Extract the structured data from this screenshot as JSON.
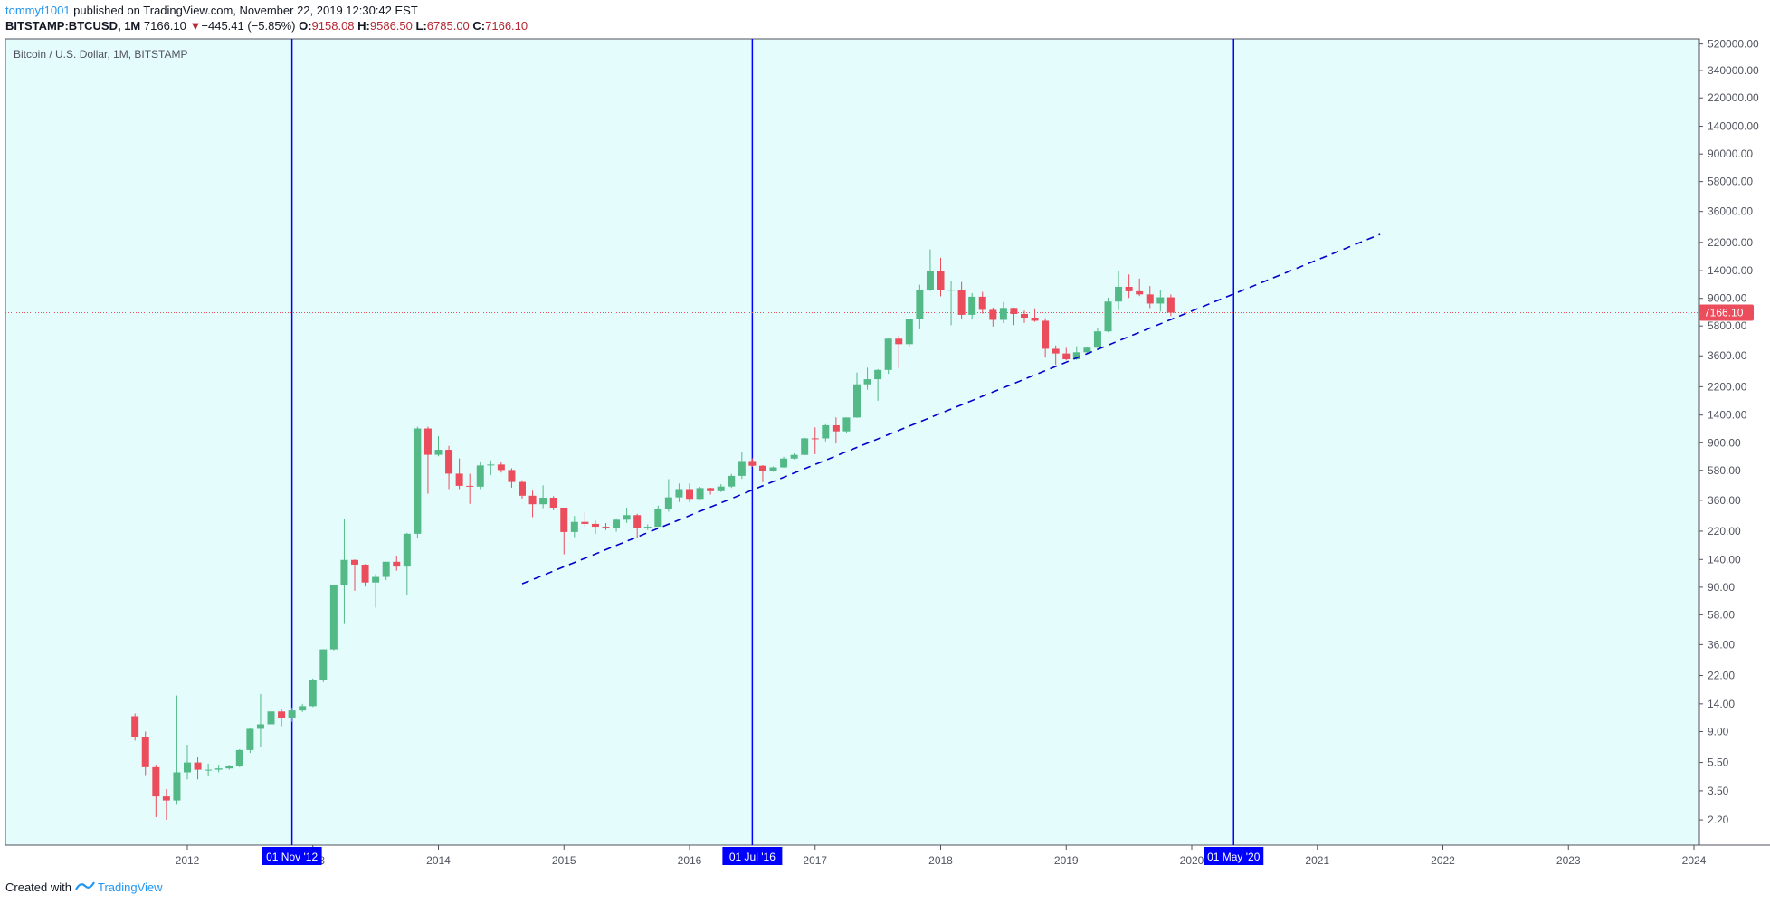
{
  "header": {
    "user": "tommyf1001",
    "published": "published on TradingView.com, November 22, 2019 12:30:42 EST",
    "symbol": "BITSTAMP:BTCUSD, 1M",
    "last": "7166.10",
    "change_arrow": "▼",
    "change": "−445.41 (−5.85%)",
    "open_label": "O:",
    "open": "9158.08",
    "high_label": "H:",
    "high": "9586.50",
    "low_label": "L:",
    "low": "6785.00",
    "close_label": "C:",
    "close": "7166.10"
  },
  "chart_data": {
    "type": "candlestick",
    "title": "Bitcoin / U.S. Dollar, 1M, BITSTAMP",
    "y_scale": "log",
    "ylim": [
      1.8,
      540000
    ],
    "y_ticks": [
      "2.20",
      "3.50",
      "5.50",
      "9.00",
      "14.00",
      "22.00",
      "36.00",
      "58.00",
      "90.00",
      "140.00",
      "220.00",
      "360.00",
      "580.00",
      "900.00",
      "1400.00",
      "2200.00",
      "3600.00",
      "5800.00",
      "9000.00",
      "14000.00",
      "22000.00",
      "36000.00",
      "58000.00",
      "90000.00",
      "140000.00",
      "220000.00",
      "340000.00",
      "520000.00"
    ],
    "x_ticks": [
      "2012",
      "2013",
      "2014",
      "2015",
      "2016",
      "2017",
      "2018",
      "2019",
      "2020",
      "2021",
      "2022",
      "2023",
      "2024"
    ],
    "x_range": [
      "2011-03",
      "2024-06"
    ],
    "colors": {
      "up": "#53b987",
      "down": "#eb4d5c",
      "background": "#e5fcfd",
      "vline": "#0000ff",
      "trend": "#0000cc",
      "price_line": "#eb4d5c"
    },
    "current_price": "7166.10",
    "vertical_lines": [
      {
        "date": "2012-11",
        "label": "01 Nov '12"
      },
      {
        "date": "2016-07",
        "label": "01 Jul '16"
      },
      {
        "date": "2020-05",
        "label": "01 May '20"
      }
    ],
    "trendline": {
      "start": [
        "2014-09",
        95
      ],
      "end": [
        "2021-07",
        25000
      ],
      "style": "dashed"
    },
    "candles": [
      [
        "2011-08",
        11.5,
        12.0,
        7.8,
        8.2
      ],
      [
        "2011-09",
        8.2,
        9.0,
        4.5,
        5.1
      ],
      [
        "2011-10",
        5.1,
        5.3,
        2.3,
        3.2
      ],
      [
        "2011-11",
        3.2,
        3.6,
        2.2,
        3.0
      ],
      [
        "2011-12",
        3.0,
        16.0,
        2.8,
        4.7
      ],
      [
        "2012-01",
        4.7,
        7.3,
        4.2,
        5.5
      ],
      [
        "2012-02",
        5.5,
        6.0,
        4.2,
        4.9
      ],
      [
        "2012-03",
        4.9,
        5.4,
        4.4,
        4.9
      ],
      [
        "2012-04",
        4.9,
        5.3,
        4.7,
        5.0
      ],
      [
        "2012-05",
        5.0,
        5.3,
        4.9,
        5.2
      ],
      [
        "2012-06",
        5.2,
        6.8,
        5.1,
        6.7
      ],
      [
        "2012-07",
        6.7,
        9.5,
        6.4,
        9.4
      ],
      [
        "2012-08",
        9.4,
        16.4,
        7.0,
        10.1
      ],
      [
        "2012-09",
        10.1,
        12.6,
        9.6,
        12.4
      ],
      [
        "2012-10",
        12.4,
        12.9,
        9.8,
        11.2
      ],
      [
        "2012-11",
        11.2,
        13.2,
        10.5,
        12.6
      ],
      [
        "2012-12",
        12.6,
        14.0,
        12.3,
        13.5
      ],
      [
        "2013-01",
        13.5,
        21.0,
        13.3,
        20.4
      ],
      [
        "2013-02",
        20.4,
        33.5,
        19.8,
        33.4
      ],
      [
        "2013-03",
        33.4,
        94.0,
        32.9,
        93.0
      ],
      [
        "2013-04",
        93.0,
        266.0,
        50.0,
        139.0
      ],
      [
        "2013-05",
        139.0,
        140.0,
        85.0,
        129.0
      ],
      [
        "2013-06",
        129.0,
        130.0,
        91.0,
        97.0
      ],
      [
        "2013-07",
        97.0,
        111.0,
        65.0,
        106.0
      ],
      [
        "2013-08",
        106.0,
        135.0,
        101.0,
        135.0
      ],
      [
        "2013-09",
        135.0,
        149.0,
        117.0,
        125.0
      ],
      [
        "2013-10",
        125.0,
        214.0,
        80.0,
        211.0
      ],
      [
        "2013-11",
        211.0,
        1163.0,
        197.0,
        1130.0
      ],
      [
        "2013-12",
        1130.0,
        1163.0,
        400.0,
        743.0
      ],
      [
        "2014-01",
        743.0,
        1000.0,
        725.0,
        805.0
      ],
      [
        "2014-02",
        805.0,
        857.0,
        430.0,
        550.0
      ],
      [
        "2014-03",
        550.0,
        700.0,
        430.0,
        453.0
      ],
      [
        "2014-04",
        453.0,
        549.0,
        340.0,
        447.0
      ],
      [
        "2014-05",
        447.0,
        660.0,
        430.0,
        627.0
      ],
      [
        "2014-06",
        627.0,
        680.0,
        537.0,
        636.0
      ],
      [
        "2014-07",
        636.0,
        660.0,
        560.0,
        583.0
      ],
      [
        "2014-08",
        583.0,
        600.0,
        440.0,
        482.0
      ],
      [
        "2014-09",
        482.0,
        495.0,
        370.0,
        387.0
      ],
      [
        "2014-10",
        387.0,
        420.0,
        275.0,
        338.0
      ],
      [
        "2014-11",
        338.0,
        457.0,
        317.0,
        375.0
      ],
      [
        "2014-12",
        375.0,
        385.0,
        307.0,
        320.0
      ],
      [
        "2015-01",
        320.0,
        320.0,
        152.0,
        217.0
      ],
      [
        "2015-02",
        217.0,
        280.0,
        200.0,
        255.0
      ],
      [
        "2015-03",
        255.0,
        300.0,
        235.0,
        247.0
      ],
      [
        "2015-04",
        247.0,
        260.0,
        210.0,
        236.0
      ],
      [
        "2015-05",
        236.0,
        250.0,
        224.0,
        230.0
      ],
      [
        "2015-06",
        230.0,
        270.0,
        218.0,
        264.0
      ],
      [
        "2015-07",
        264.0,
        320.0,
        251.0,
        284.0
      ],
      [
        "2015-08",
        284.0,
        290.0,
        198.0,
        230.0
      ],
      [
        "2015-09",
        230.0,
        245.0,
        224.0,
        236.0
      ],
      [
        "2015-10",
        236.0,
        330.0,
        235.0,
        314.0
      ],
      [
        "2015-11",
        314.0,
        504.0,
        300.0,
        377.0
      ],
      [
        "2015-12",
        377.0,
        470.0,
        350.0,
        430.0
      ],
      [
        "2016-01",
        430.0,
        470.0,
        350.0,
        368.0
      ],
      [
        "2016-02",
        368.0,
        445.0,
        366.0,
        437.0
      ],
      [
        "2016-03",
        437.0,
        440.0,
        394.0,
        416.0
      ],
      [
        "2016-04",
        416.0,
        465.0,
        411.0,
        448.0
      ],
      [
        "2016-05",
        448.0,
        548.0,
        438.0,
        531.0
      ],
      [
        "2016-06",
        531.0,
        780.0,
        506.0,
        673.0
      ],
      [
        "2016-07",
        673.0,
        704.0,
        612.0,
        624.0
      ],
      [
        "2016-08",
        624.0,
        630.0,
        480.0,
        573.0
      ],
      [
        "2016-09",
        573.0,
        616.0,
        568.0,
        608.0
      ],
      [
        "2016-10",
        608.0,
        720.0,
        603.0,
        700.0
      ],
      [
        "2016-11",
        700.0,
        760.0,
        690.0,
        742.0
      ],
      [
        "2016-12",
        742.0,
        975.0,
        740.0,
        966.0
      ],
      [
        "2017-01",
        966.0,
        1150.0,
        750.0,
        965.0
      ],
      [
        "2017-02",
        965.0,
        1210.0,
        920.0,
        1190.0
      ],
      [
        "2017-03",
        1190.0,
        1350.0,
        890.0,
        1080.0
      ],
      [
        "2017-04",
        1080.0,
        1350.0,
        1060.0,
        1347.0
      ],
      [
        "2017-05",
        1347.0,
        2760.0,
        1340.0,
        2286.0
      ],
      [
        "2017-06",
        2286.0,
        2980.0,
        2100.0,
        2480.0
      ],
      [
        "2017-07",
        2480.0,
        2915.0,
        1760.0,
        2875.0
      ],
      [
        "2017-08",
        2875.0,
        4750.0,
        2700.0,
        4735.0
      ],
      [
        "2017-09",
        4735.0,
        4980.0,
        2970.0,
        4338.0
      ],
      [
        "2017-10",
        4338.0,
        6470.0,
        4110.0,
        6468.0
      ],
      [
        "2017-11",
        6468.0,
        11200.0,
        5500.0,
        10233.0
      ],
      [
        "2017-12",
        10233.0,
        19666.0,
        10130.0,
        13860.0
      ],
      [
        "2018-01",
        13860.0,
        17200.0,
        9300.0,
        10265.0
      ],
      [
        "2018-02",
        10265.0,
        11800.0,
        5873.0,
        10326.0
      ],
      [
        "2018-03",
        10326.0,
        11700.0,
        6450.0,
        6926.0
      ],
      [
        "2018-04",
        6926.0,
        9800.0,
        6430.0,
        9245.0
      ],
      [
        "2018-05",
        9245.0,
        9990.0,
        7060.0,
        7495.0
      ],
      [
        "2018-06",
        7495.0,
        7780.0,
        5750.0,
        6390.0
      ],
      [
        "2018-07",
        6390.0,
        8500.0,
        6070.0,
        7730.0
      ],
      [
        "2018-08",
        7730.0,
        7760.0,
        5880.0,
        7020.0
      ],
      [
        "2018-09",
        7020.0,
        7410.0,
        6100.0,
        6620.0
      ],
      [
        "2018-10",
        6620.0,
        7680.0,
        6200.0,
        6300.0
      ],
      [
        "2018-11",
        6300.0,
        6560.0,
        3500.0,
        4030.0
      ],
      [
        "2018-12",
        4030.0,
        4250.0,
        3120.0,
        3740.0
      ],
      [
        "2019-01",
        3740.0,
        4090.0,
        3350.0,
        3410.0
      ],
      [
        "2019-02",
        3410.0,
        4200.0,
        3370.0,
        3810.0
      ],
      [
        "2019-03",
        3810.0,
        4140.0,
        3690.0,
        4100.0
      ],
      [
        "2019-04",
        4100.0,
        5640.0,
        4080.0,
        5320.0
      ],
      [
        "2019-05",
        5320.0,
        9100.0,
        5270.0,
        8560.0
      ],
      [
        "2019-06",
        8560.0,
        13880.0,
        7460.0,
        10820.0
      ],
      [
        "2019-07",
        10820.0,
        13200.0,
        9060.0,
        10080.0
      ],
      [
        "2019-08",
        10080.0,
        12350.0,
        9340.0,
        9590.0
      ],
      [
        "2019-09",
        9590.0,
        10950.0,
        7710.0,
        8290.0
      ],
      [
        "2019-10",
        8290.0,
        10360.0,
        7300.0,
        9158.0
      ],
      [
        "2019-11",
        9158.08,
        9586.5,
        6785.0,
        7166.1
      ]
    ]
  },
  "footer": {
    "created_with": "Created with",
    "brand": "TradingView"
  }
}
